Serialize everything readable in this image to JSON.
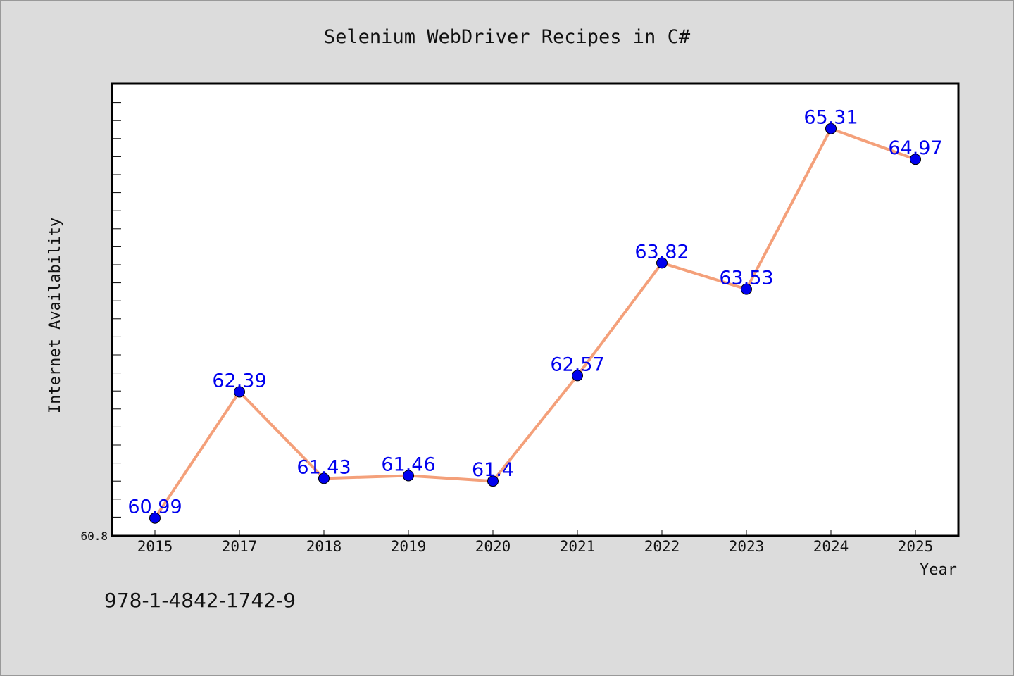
{
  "chart_data": {
    "type": "line",
    "title": "Selenium WebDriver Recipes in C#",
    "xlabel": "Year",
    "ylabel": "Internet Availability",
    "categories": [
      "2015",
      "2017",
      "2018",
      "2019",
      "2020",
      "2021",
      "2022",
      "2023",
      "2024",
      "2025"
    ],
    "series": [
      {
        "values": [
          60.99,
          62.39,
          61.43,
          61.46,
          61.4,
          62.57,
          63.82,
          63.53,
          65.31,
          64.97
        ],
        "data_labels": [
          "60.99",
          "62.39",
          "61.43",
          "61.46",
          "61.4",
          "62.57",
          "63.82",
          "63.53",
          "65.31",
          "64.97"
        ]
      }
    ],
    "ylim": [
      60.8,
      65.8
    ],
    "y_tick_label": "60.8",
    "grid": false,
    "colors": {
      "line": "#f4a07a",
      "marker": "#0000ee",
      "data_label": "#0000ee",
      "background": "#dcdcdc",
      "plot_background": "#ffffff"
    }
  },
  "footer": {
    "isbn": "978-1-4842-1742-9"
  }
}
